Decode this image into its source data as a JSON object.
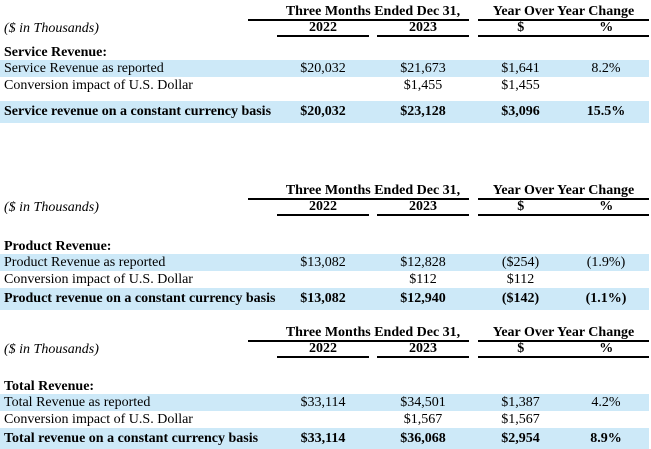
{
  "colors": {
    "highlight": "#cde9f8",
    "rule": "#000000",
    "text": "#000000"
  },
  "columns": {
    "scale_note": "($ in Thousands)",
    "period_header": "Three Months Ended Dec 31,",
    "yoy_header": "Year Over Year Change",
    "year1": "2022",
    "year2": "2023",
    "dollar": "$",
    "percent": "%"
  },
  "tables": [
    {
      "section": "Service Revenue:",
      "rows": [
        {
          "label": "Service Revenue as reported",
          "y2022": "$20,032",
          "y2023": "$21,673",
          "chg": "$1,641",
          "pct": "8.2%"
        },
        {
          "label": "Conversion impact of U.S. Dollar",
          "y2022": "",
          "y2023": "$1,455",
          "chg": "$1,455",
          "pct": ""
        },
        {
          "label": "Service revenue on a constant currency basis",
          "y2022": "$20,032",
          "y2023": "$23,128",
          "chg": "$3,096",
          "pct": "15.5%"
        }
      ]
    },
    {
      "section": "Product Revenue:",
      "rows": [
        {
          "label": "Product Revenue as reported",
          "y2022": "$13,082",
          "y2023": "$12,828",
          "chg": "($254)",
          "pct": "(1.9%)"
        },
        {
          "label": "Conversion impact of U.S. Dollar",
          "y2022": "",
          "y2023": "$112",
          "chg": "$112",
          "pct": ""
        },
        {
          "label": "Product revenue on a constant currency basis",
          "y2022": "$13,082",
          "y2023": "$12,940",
          "chg": "($142)",
          "pct": "(1.1%)"
        }
      ]
    },
    {
      "section": "Total Revenue:",
      "rows": [
        {
          "label": "Total Revenue as reported",
          "y2022": "$33,114",
          "y2023": "$34,501",
          "chg": "$1,387",
          "pct": "4.2%"
        },
        {
          "label": "Conversion impact of U.S. Dollar",
          "y2022": "",
          "y2023": "$1,567",
          "chg": "$1,567",
          "pct": ""
        },
        {
          "label": "Total revenue on a constant currency basis",
          "y2022": "$33,114",
          "y2023": "$36,068",
          "chg": "$2,954",
          "pct": "8.9%"
        }
      ]
    }
  ]
}
